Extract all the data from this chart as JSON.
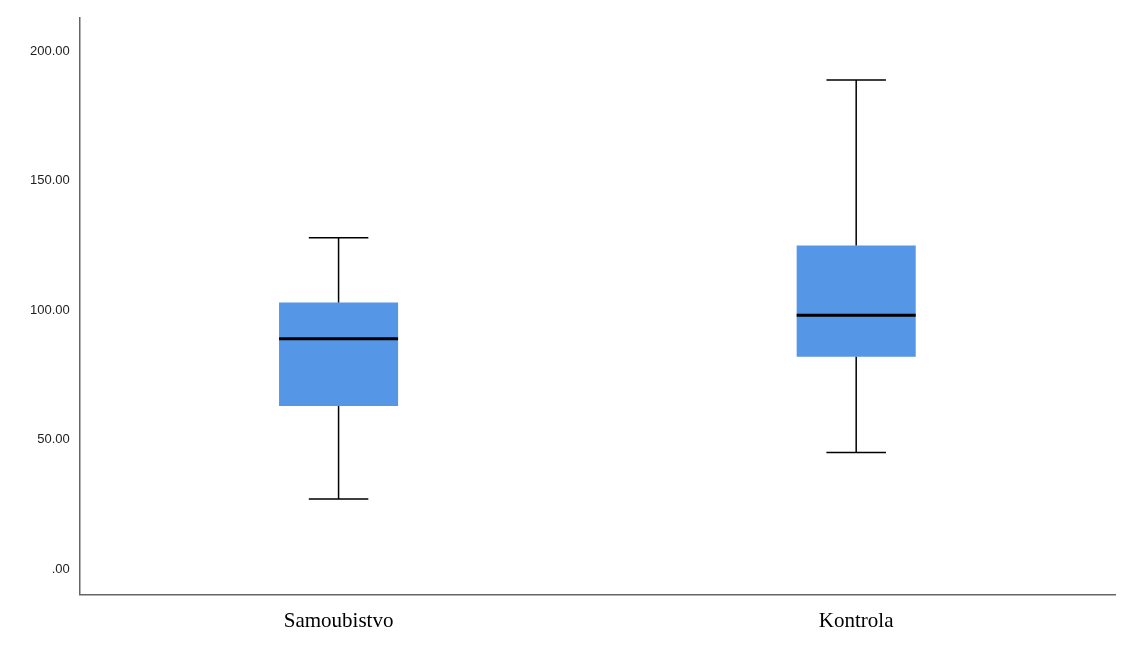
{
  "chart_data": {
    "type": "box",
    "categories": [
      "Samoubistvo",
      "Kontrola"
    ],
    "color": "#5596e6",
    "boxes": [
      {
        "low": 27,
        "q1": 63,
        "median": 89,
        "q3": 103,
        "high": 128
      },
      {
        "low": 45,
        "q1": 82,
        "median": 98,
        "q3": 125,
        "high": 189
      }
    ],
    "ylim": [
      -10,
      213
    ],
    "yticks": [
      {
        "value": 0,
        "label": ".00"
      },
      {
        "value": 50,
        "label": "50.00"
      },
      {
        "value": 100,
        "label": "100.00"
      },
      {
        "value": 150,
        "label": "150.00"
      },
      {
        "value": 200,
        "label": "200.00"
      }
    ]
  }
}
